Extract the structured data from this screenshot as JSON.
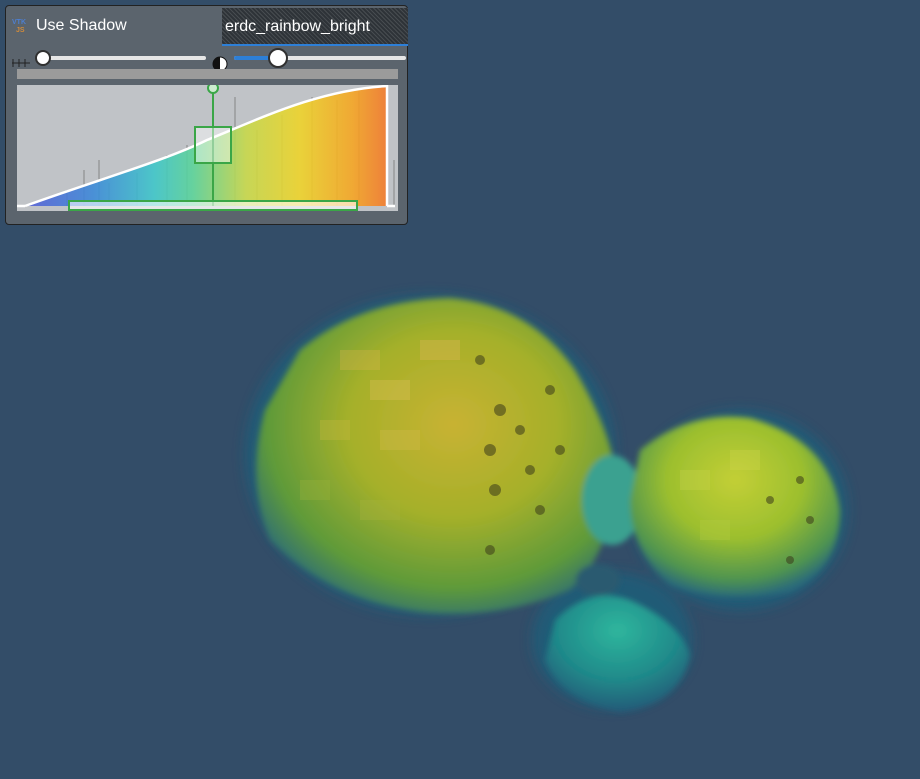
{
  "panel": {
    "logo_text": "VTK JS",
    "shadow_label": "Use Shadow",
    "preset_name": "erdc_rainbow_bright"
  },
  "sliders": {
    "shadow_level": 0,
    "opacity_level": 0.25
  },
  "colors": {
    "background": "#334d68",
    "panel": "#5b646d",
    "accent": "#2d7fd7",
    "widget_green": "#3aa647",
    "colormap": [
      "#5a5ad6",
      "#3d8ad8",
      "#3fc6c9",
      "#5bd39a",
      "#c7d84a",
      "#eed42a",
      "#f5a623",
      "#f36b2d"
    ]
  },
  "icons": {
    "logo": "vtk-js-logo-icon",
    "ticks": "ticks-icon",
    "contrast": "contrast-icon"
  }
}
